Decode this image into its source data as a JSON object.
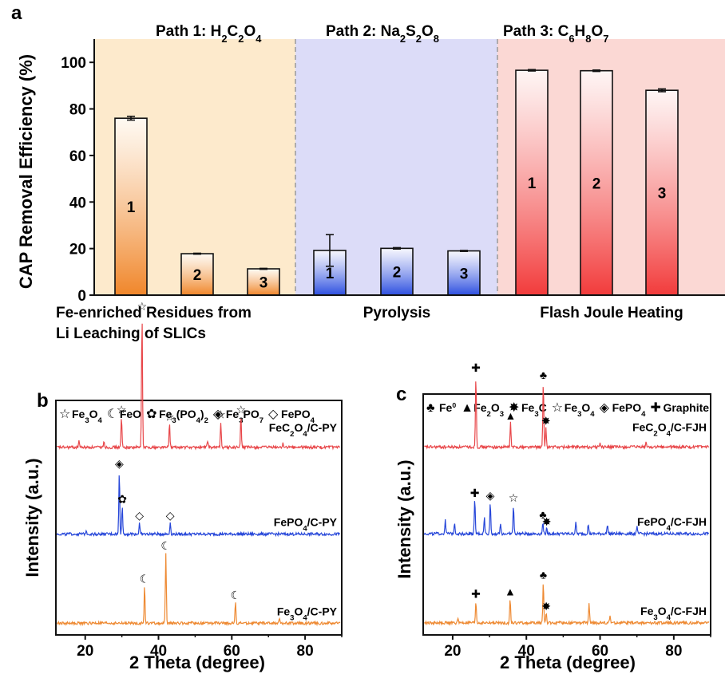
{
  "panel_a": {
    "letter": "a",
    "colors": {
      "path1_bg": "#fdeacc",
      "path2_bg": "#dcdcf8",
      "path3_bg": "#fbd8d4",
      "orange": "#f0862a",
      "blue": "#2d4fe0",
      "red": "#f23b3b"
    },
    "path_titles": [
      {
        "prefix": "Path 1: ",
        "parts": [
          [
            "H",
            ""
          ],
          [
            "2",
            "sub"
          ],
          [
            "C",
            ""
          ],
          [
            "2",
            "sub"
          ],
          [
            "O",
            ""
          ],
          [
            "4",
            "sub"
          ]
        ]
      },
      {
        "prefix": "Path 2: ",
        "parts": [
          [
            "Na",
            ""
          ],
          [
            "2",
            "sub"
          ],
          [
            "S",
            ""
          ],
          [
            "2",
            "sub"
          ],
          [
            "O",
            ""
          ],
          [
            "8",
            "sub"
          ]
        ]
      },
      {
        "prefix": "Path 3: ",
        "parts": [
          [
            "C",
            ""
          ],
          [
            "6",
            "sub"
          ],
          [
            "H",
            ""
          ],
          [
            "8",
            "sub"
          ],
          [
            "O",
            ""
          ],
          [
            "7",
            "sub"
          ]
        ]
      }
    ],
    "category_labels": [
      {
        "lines": [
          "Fe-enriched Residues from",
          "Li Leaching of SLICs"
        ]
      },
      {
        "lines": [
          "Pyrolysis"
        ]
      },
      {
        "lines": [
          "Flash Joule Heating"
        ]
      }
    ]
  },
  "panel_b": {
    "letter": "b",
    "legend": [
      {
        "symbol": "☆",
        "parts": [
          [
            "Fe",
            ""
          ],
          [
            "3",
            "sub"
          ],
          [
            "O",
            ""
          ],
          [
            "4",
            "sub"
          ]
        ]
      },
      {
        "symbol": "☾",
        "parts": [
          [
            "FeO",
            ""
          ]
        ]
      },
      {
        "symbol": "✿",
        "parts": [
          [
            "Fe",
            ""
          ],
          [
            "3",
            "sub"
          ],
          [
            "(PO",
            ""
          ],
          [
            "4",
            "sub"
          ],
          [
            ")",
            ""
          ],
          [
            "2",
            "sub"
          ]
        ]
      },
      {
        "symbol": "◈",
        "parts": [
          [
            "Fe",
            ""
          ],
          [
            "3",
            "sub"
          ],
          [
            "PO",
            ""
          ],
          [
            "7",
            "sub"
          ]
        ]
      },
      {
        "symbol": "◇",
        "parts": [
          [
            "FePO",
            ""
          ],
          [
            "4",
            "sub"
          ]
        ]
      }
    ]
  },
  "panel_c": {
    "letter": "c",
    "legend": [
      {
        "symbol": "♣",
        "parts": [
          [
            "Fe",
            ""
          ],
          [
            "0",
            "sup"
          ]
        ]
      },
      {
        "symbol": "▲",
        "parts": [
          [
            "Fe",
            ""
          ],
          [
            "2",
            "sub"
          ],
          [
            "O",
            ""
          ],
          [
            "3",
            "sub"
          ]
        ]
      },
      {
        "symbol": "✸",
        "parts": [
          [
            "Fe",
            ""
          ],
          [
            "3",
            "sub"
          ],
          [
            "C",
            ""
          ]
        ]
      },
      {
        "symbol": "☆",
        "parts": [
          [
            "Fe",
            ""
          ],
          [
            "3",
            "sub"
          ],
          [
            "O",
            ""
          ],
          [
            "4",
            "sub"
          ]
        ]
      },
      {
        "symbol": "◈",
        "parts": [
          [
            "FePO",
            ""
          ],
          [
            "4",
            "sub"
          ]
        ]
      },
      {
        "symbol": "✚",
        "parts": [
          [
            "Graphite",
            ""
          ]
        ]
      }
    ]
  },
  "chart_data": [
    {
      "type": "bar",
      "panel": "a",
      "title": "",
      "xlabel": "",
      "ylabel": "CAP Removal Efficiency (%)",
      "ylim": [
        0,
        110
      ],
      "yticks": [
        0,
        20,
        40,
        60,
        80,
        100
      ],
      "grid": false,
      "groups": [
        {
          "name": "Path 1",
          "categories": [
            "1",
            "2",
            "3"
          ],
          "values": [
            76,
            17.8,
            11.3
          ],
          "errors": [
            0.8,
            0.2,
            0.2
          ],
          "color": "#f0862a"
        },
        {
          "name": "Path 2",
          "categories": [
            "1",
            "2",
            "3"
          ],
          "values": [
            19.2,
            20.1,
            19.0
          ],
          "errors": [
            6.8,
            0.3,
            0.2
          ],
          "color": "#2d4fe0"
        },
        {
          "name": "Path 3",
          "categories": [
            "1",
            "2",
            "3"
          ],
          "values": [
            96.6,
            96.4,
            88.0
          ],
          "errors": [
            0.3,
            0.3,
            0.6
          ],
          "color": "#f23b3b"
        }
      ]
    },
    {
      "type": "line",
      "panel": "b",
      "xlabel": "2 Theta (degree)",
      "ylabel": "Intensity (a.u.)",
      "xlim": [
        12,
        90
      ],
      "xticks": [
        20,
        40,
        60,
        80
      ],
      "series": [
        {
          "name": "FeC2O4/C-PY",
          "label_parts": [
            [
              "FeC",
              ""
            ],
            [
              "2",
              "sub"
            ],
            [
              "O",
              ""
            ],
            [
              "4",
              "sub"
            ],
            [
              "/C-PY",
              ""
            ]
          ],
          "color": "#e8474a",
          "baseline": 0.8,
          "peaks": [
            [
              29.9,
              0.13,
              "☆"
            ],
            [
              35.5,
              0.57,
              "☆"
            ],
            [
              43.0,
              0.1,
              "☆"
            ],
            [
              57.0,
              0.11,
              "☆"
            ],
            [
              62.5,
              0.13,
              "☆"
            ],
            [
              18.3,
              0.03,
              ""
            ],
            [
              25.1,
              0.03,
              ""
            ],
            [
              53.4,
              0.03,
              ""
            ],
            [
              74.0,
              0.02,
              ""
            ]
          ]
        },
        {
          "name": "FePO4/C-PY",
          "label_parts": [
            [
              "FePO",
              ""
            ],
            [
              "4",
              "sub"
            ],
            [
              "/C-PY",
              ""
            ]
          ],
          "color": "#2747d9",
          "baseline": 0.43,
          "peaks": [
            [
              29.3,
              0.27,
              "◈"
            ],
            [
              30.1,
              0.12,
              "✿"
            ],
            [
              34.8,
              0.05,
              "◇"
            ],
            [
              43.2,
              0.05,
              "◇"
            ],
            [
              20.3,
              0.02,
              ""
            ]
          ]
        },
        {
          "name": "Fe3O4/C-PY",
          "label_parts": [
            [
              "Fe",
              ""
            ],
            [
              "3",
              "sub"
            ],
            [
              "O",
              ""
            ],
            [
              "4",
              "sub"
            ],
            [
              "/C-PY",
              ""
            ]
          ],
          "color": "#ee8a33",
          "baseline": 0.05,
          "peaks": [
            [
              36.2,
              0.16,
              "☾"
            ],
            [
              42.0,
              0.3,
              "☾"
            ],
            [
              61.0,
              0.09,
              "☾"
            ],
            [
              73.0,
              0.02,
              ""
            ]
          ]
        }
      ]
    },
    {
      "type": "line",
      "panel": "c",
      "xlabel": "2 Theta (degree)",
      "ylabel": "Intensity (a.u.)",
      "xlim": [
        12,
        90
      ],
      "xticks": [
        20,
        40,
        60,
        80
      ],
      "series": [
        {
          "name": "FeC2O4/C-FJH",
          "label_parts": [
            [
              "FeC",
              ""
            ],
            [
              "2",
              "sub"
            ],
            [
              "O",
              ""
            ],
            [
              "4",
              "sub"
            ],
            [
              "/C-FJH",
              ""
            ]
          ],
          "color": "#e8474a",
          "baseline": 0.78,
          "peaks": [
            [
              26.3,
              0.3,
              "✚"
            ],
            [
              35.7,
              0.1,
              "▲"
            ],
            [
              44.6,
              0.27,
              "♣"
            ],
            [
              45.3,
              0.08,
              "✸"
            ],
            [
              60.0,
              0.02,
              ""
            ],
            [
              72.5,
              0.02,
              ""
            ]
          ]
        },
        {
          "name": "FePO4/C-FJH",
          "label_parts": [
            [
              "FePO",
              ""
            ],
            [
              "4",
              "sub"
            ],
            [
              "/C-FJH",
              ""
            ]
          ],
          "color": "#2747d9",
          "baseline": 0.42,
          "peaks": [
            [
              26.0,
              0.14,
              "✚"
            ],
            [
              30.2,
              0.13,
              "◈"
            ],
            [
              36.5,
              0.12,
              "☆"
            ],
            [
              44.5,
              0.05,
              "♣"
            ],
            [
              45.5,
              0.02,
              "✸"
            ],
            [
              18.0,
              0.06,
              ""
            ],
            [
              20.5,
              0.05,
              ""
            ],
            [
              28.6,
              0.07,
              ""
            ],
            [
              33.0,
              0.04,
              ""
            ],
            [
              53.4,
              0.05,
              ""
            ],
            [
              56.8,
              0.04,
              ""
            ],
            [
              62.0,
              0.04,
              ""
            ],
            [
              70.0,
              0.03,
              ""
            ]
          ]
        },
        {
          "name": "Fe3O4/C-FJH",
          "label_parts": [
            [
              "Fe",
              ""
            ],
            [
              "3",
              "sub"
            ],
            [
              "O",
              ""
            ],
            [
              "4",
              "sub"
            ],
            [
              "/C-FJH",
              ""
            ]
          ],
          "color": "#ee8a33",
          "baseline": 0.05,
          "peaks": [
            [
              26.3,
              0.09,
              "✚"
            ],
            [
              35.6,
              0.1,
              "▲"
            ],
            [
              44.6,
              0.17,
              "♣"
            ],
            [
              45.4,
              0.04,
              "✸"
            ],
            [
              57.0,
              0.08,
              ""
            ],
            [
              62.7,
              0.03,
              ""
            ],
            [
              21.5,
              0.02,
              ""
            ]
          ]
        }
      ]
    }
  ]
}
